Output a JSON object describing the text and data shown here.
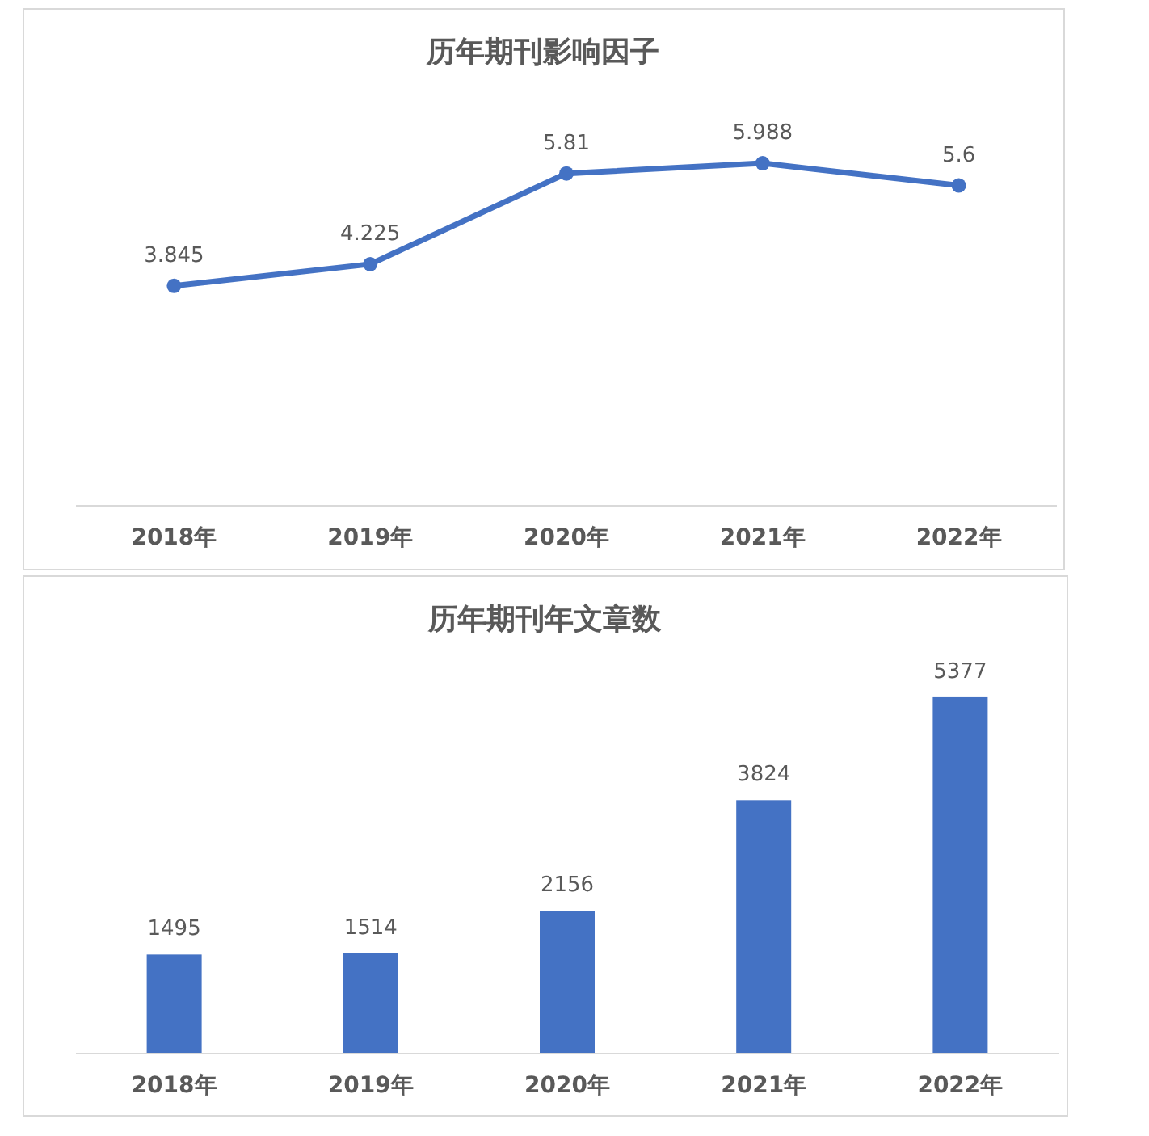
{
  "chart_data": [
    {
      "type": "line",
      "title": "历年期刊影响因子",
      "categories": [
        "2018年",
        "2019年",
        "2020年",
        "2021年",
        "2022年"
      ],
      "values": [
        3.845,
        4.225,
        5.81,
        5.988,
        5.6
      ],
      "color": "#4472c4",
      "marker": "circle",
      "data_labels": true
    },
    {
      "type": "bar",
      "title": "历年期刊年文章数",
      "categories": [
        "2018年",
        "2019年",
        "2020年",
        "2021年",
        "2022年"
      ],
      "values": [
        1495,
        1514,
        2156,
        3824,
        5377
      ],
      "color": "#4472c4",
      "data_labels": true
    }
  ]
}
